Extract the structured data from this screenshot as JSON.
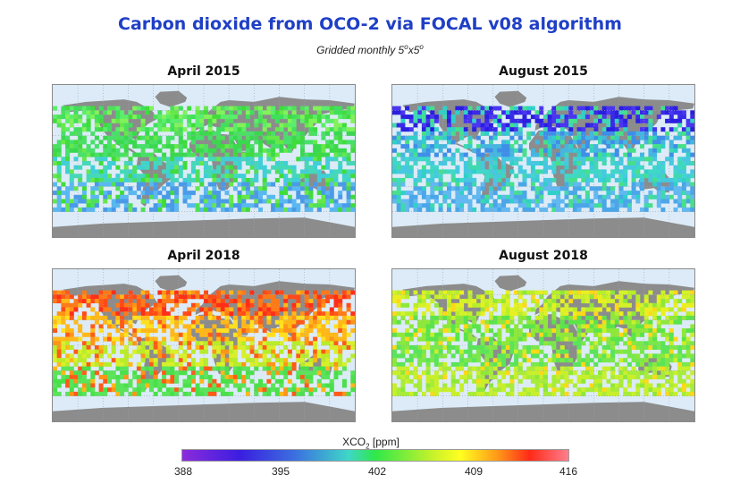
{
  "title": "Carbon dioxide from OCO-2 via FOCAL v08 algorithm",
  "subtitle": "Gridded monthly 5",
  "subtitle_sup1": "o",
  "subtitle_mid": "x5",
  "subtitle_sup2": "o",
  "panels": [
    {
      "title": "April 2015",
      "scheme": "apr15"
    },
    {
      "title": "August 2015",
      "scheme": "aug15"
    },
    {
      "title": "April 2018",
      "scheme": "apr18"
    },
    {
      "title": "August 2018",
      "scheme": "aug18"
    }
  ],
  "colorbar": {
    "label_main": "XCO",
    "label_sub": "2",
    "label_unit": " [ppm]",
    "ticks": [
      "388",
      "395",
      "402",
      "409",
      "416"
    ]
  },
  "colors": {
    "title": "#1f3fc6",
    "land": "#8c8c8c",
    "ocean": "#dcebf7"
  }
}
